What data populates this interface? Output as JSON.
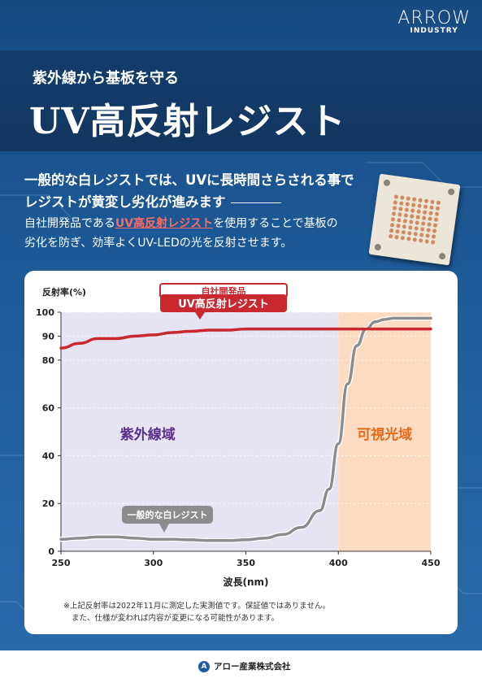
{
  "logo": {
    "mark": "ARROW",
    "sub": "INDUSTRY"
  },
  "header": {
    "subtitle": "紫外線から基板を守る",
    "title": "UV高反射レジスト"
  },
  "lead": {
    "line1": "一般的な白レジストでは、UVに長時間さらされる事で",
    "line2": "レジストが黄変し劣化が進みます"
  },
  "body": {
    "pre": "自社開発品である",
    "highlight": "UV高反射レジスト",
    "post": "を使用することで基板の",
    "line2": "劣化を防ぎ、効率よくUV-LEDの光を反射させます。"
  },
  "chart_data": {
    "type": "line",
    "ylabel": "反射率(%)",
    "xlabel": "波長(nm)",
    "xlim": [
      250,
      450
    ],
    "ylim": [
      0,
      100
    ],
    "x_ticks": [
      250,
      300,
      350,
      400,
      450
    ],
    "y_ticks": [
      0,
      20,
      40,
      60,
      80,
      90,
      100
    ],
    "regions": [
      {
        "label": "紫外線域",
        "from": 250,
        "to": 400,
        "color": "#e6e4f3"
      },
      {
        "label": "可視光域",
        "from": 400,
        "to": 450,
        "color": "#fbdcc2"
      }
    ],
    "series": [
      {
        "name": "UV高反射レジスト",
        "tag": "自社開発品",
        "color": "#c8282e",
        "x": [
          250,
          260,
          270,
          280,
          290,
          300,
          310,
          320,
          330,
          340,
          350,
          360,
          370,
          380,
          390,
          400,
          410,
          420,
          430,
          440,
          450
        ],
        "y": [
          85,
          87,
          89,
          89,
          90,
          90.5,
          91.5,
          92,
          92.5,
          92.5,
          93,
          93,
          93,
          93,
          93,
          93,
          93,
          93,
          93,
          93,
          93
        ]
      },
      {
        "name": "一般的な白レジスト",
        "color": "#8c8c8c",
        "x": [
          250,
          260,
          270,
          280,
          290,
          300,
          310,
          320,
          330,
          340,
          350,
          360,
          370,
          380,
          390,
          395,
          400,
          405,
          410,
          415,
          420,
          425,
          430,
          440,
          450
        ],
        "y": [
          5,
          5.5,
          6,
          6,
          5.5,
          5,
          5,
          4.8,
          4.5,
          4.5,
          4.8,
          5.5,
          7,
          10,
          17,
          26,
          45,
          70,
          86,
          93,
          96,
          97,
          97.5,
          97.5,
          97.5
        ]
      }
    ]
  },
  "notes": {
    "line1": "※上記反射率は2022年11月に測定した実測値です。保証値ではありません。",
    "line2": "また、仕様が変われば内容が変更になる可能性があります。"
  },
  "footer": {
    "company": "アロー産業株式会社",
    "badge": "A"
  }
}
